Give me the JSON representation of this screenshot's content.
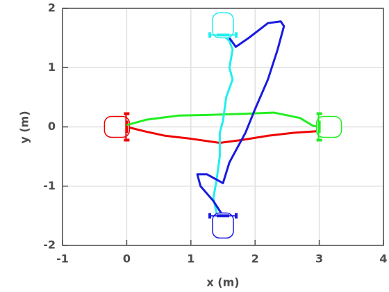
{
  "chart_data": {
    "type": "line",
    "xlabel": "x (m)",
    "ylabel": "y (m)",
    "xlim": [
      -1,
      4
    ],
    "ylim": [
      -2,
      2
    ],
    "xticks": [
      -1,
      0,
      1,
      2,
      3,
      4
    ],
    "yticks": [
      -2,
      -1,
      0,
      1,
      2
    ],
    "grid": true,
    "series": [
      {
        "color": "#ee0000",
        "x": [
          0,
          0.3,
          0.6,
          1,
          1.45,
          1.8,
          2.2,
          2.6,
          3
        ],
        "y": [
          0,
          -0.08,
          -0.15,
          -0.2,
          -0.27,
          -0.22,
          -0.15,
          -0.1,
          -0.07
        ]
      },
      {
        "color": "#22ee22",
        "x": [
          3,
          2.9,
          2.7,
          2.3,
          1.8,
          1.2,
          0.8,
          0.3,
          0
        ],
        "y": [
          0,
          0.02,
          0.15,
          0.24,
          0.22,
          0.2,
          0.19,
          0.12,
          0.03
        ]
      },
      {
        "color": "#22eeee",
        "x": [
          1.5,
          1.6,
          1.65,
          1.6,
          1.65,
          1.55,
          1.5,
          1.45,
          1.45,
          1.4,
          1.35,
          1.4,
          1.45
        ],
        "y": [
          1.55,
          1.45,
          1.3,
          1.0,
          0.8,
          0.5,
          0.1,
          -0.1,
          -0.5,
          -0.9,
          -1.2,
          -1.45,
          -1.5
        ]
      },
      {
        "color": "#1a1ae0",
        "x": [
          1.5,
          1.35,
          1.15,
          1.1,
          1.25,
          1.5,
          1.6,
          1.75,
          1.85,
          2.0,
          2.2,
          2.35,
          2.45,
          2.4,
          2.2,
          1.9,
          1.7,
          1.6
        ],
        "y": [
          -1.5,
          -1.25,
          -1.0,
          -0.8,
          -0.8,
          -0.95,
          -0.6,
          -0.3,
          -0.1,
          0.3,
          0.8,
          1.3,
          1.7,
          1.78,
          1.75,
          1.5,
          1.35,
          1.5
        ]
      }
    ]
  }
}
